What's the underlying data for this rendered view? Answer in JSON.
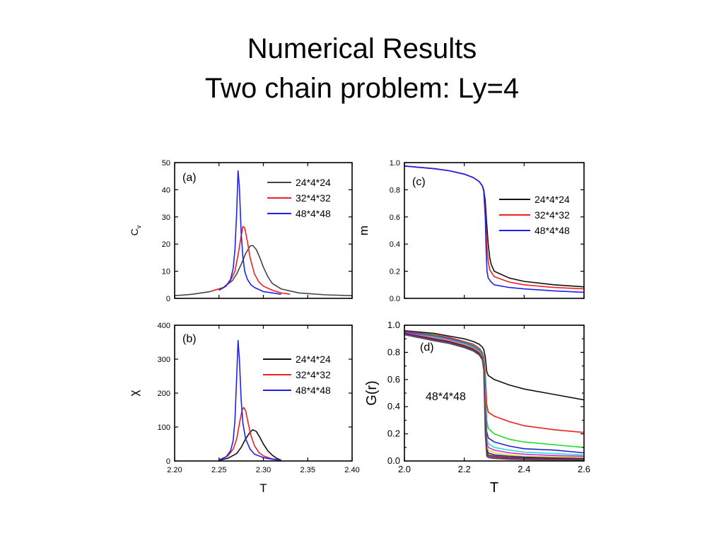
{
  "slide": {
    "title_line1": "Numerical Results",
    "title_line2": "Two chain problem: Ly=4"
  },
  "chart_data": [
    {
      "panel": "(a)",
      "type": "line",
      "xlabel": "",
      "ylabel": "Cv",
      "ylabel_main": "C",
      "ylabel_sub": "v",
      "xlim": [
        2.2,
        2.4
      ],
      "ylim": [
        0,
        50
      ],
      "xticks": [
        2.2,
        2.25,
        2.3,
        2.35,
        2.4
      ],
      "xtick_labels": [],
      "yticks": [
        0,
        10,
        20,
        30,
        40,
        50
      ],
      "ytick_labels": [
        "0",
        "10",
        "20",
        "30",
        "40",
        "50"
      ],
      "legend": "top-right",
      "series": [
        {
          "name": "24*4*24",
          "color": "#444444",
          "x": [
            2.2,
            2.22,
            2.24,
            2.255,
            2.265,
            2.27,
            2.275,
            2.28,
            2.285,
            2.288,
            2.292,
            2.296,
            2.3,
            2.305,
            2.31,
            2.32,
            2.34,
            2.37,
            2.4
          ],
          "y": [
            1,
            1.5,
            2.5,
            4,
            6.5,
            9,
            12.5,
            16.5,
            19.3,
            19.5,
            18,
            15,
            11.5,
            8,
            5.5,
            3.5,
            2,
            1.3,
            1
          ]
        },
        {
          "name": "32*4*32",
          "color": "#ee2020",
          "x": [
            2.24,
            2.255,
            2.262,
            2.268,
            2.272,
            2.275,
            2.277,
            2.279,
            2.282,
            2.285,
            2.29,
            2.295,
            2.3,
            2.31,
            2.32,
            2.33
          ],
          "y": [
            2.5,
            4,
            6,
            10,
            17,
            23,
            26.5,
            26,
            21,
            15,
            9,
            6,
            4.5,
            3,
            2,
            1.5
          ]
        },
        {
          "name": "48*4*48",
          "color": "#2020ee",
          "x": [
            2.25,
            2.258,
            2.263,
            2.266,
            2.268,
            2.27,
            2.2715,
            2.273,
            2.275,
            2.277,
            2.279,
            2.282,
            2.286,
            2.29,
            2.3,
            2.31,
            2.32
          ],
          "y": [
            3,
            4.5,
            7,
            11,
            18,
            32,
            47,
            41,
            24,
            15,
            10,
            7,
            5,
            4,
            2.5,
            2,
            1.5
          ]
        }
      ]
    },
    {
      "panel": "(b)",
      "type": "line",
      "xlabel": "T",
      "ylabel": "χ",
      "xlim": [
        2.2,
        2.4
      ],
      "ylim": [
        0,
        400
      ],
      "xticks": [
        2.2,
        2.25,
        2.3,
        2.35,
        2.4
      ],
      "xtick_labels": [
        "2.20",
        "2.25",
        "2.30",
        "2.35",
        "2.40"
      ],
      "yticks": [
        0,
        100,
        200,
        300,
        400
      ],
      "ytick_labels": [
        "0",
        "100",
        "200",
        "300",
        "400"
      ],
      "legend": "top-right",
      "series": [
        {
          "name": "24*4*24",
          "color": "#111111",
          "x": [
            2.25,
            2.26,
            2.27,
            2.275,
            2.28,
            2.285,
            2.288,
            2.292,
            2.296,
            2.3,
            2.305,
            2.31,
            2.315,
            2.32
          ],
          "y": [
            2,
            8,
            22,
            40,
            65,
            85,
            92,
            87,
            70,
            50,
            30,
            17,
            8,
            3
          ]
        },
        {
          "name": "32*4*32",
          "color": "#ee2020",
          "x": [
            2.25,
            2.26,
            2.266,
            2.27,
            2.273,
            2.276,
            2.278,
            2.28,
            2.283,
            2.286,
            2.29,
            2.295,
            2.3,
            2.31,
            2.32
          ],
          "y": [
            3,
            15,
            35,
            65,
            110,
            150,
            158,
            148,
            110,
            75,
            45,
            25,
            15,
            6,
            3
          ]
        },
        {
          "name": "48*4*48",
          "color": "#2020ee",
          "x": [
            2.25,
            2.258,
            2.263,
            2.266,
            2.268,
            2.27,
            2.2715,
            2.273,
            2.275,
            2.277,
            2.28,
            2.285,
            2.29,
            2.3,
            2.31,
            2.32
          ],
          "y": [
            3,
            12,
            30,
            60,
            120,
            250,
            355,
            300,
            180,
            110,
            65,
            35,
            20,
            10,
            5,
            2
          ]
        }
      ]
    },
    {
      "panel": "(c)",
      "type": "line",
      "xlabel": "",
      "ylabel": "m",
      "xlim": [
        2.0,
        2.6
      ],
      "ylim": [
        0,
        1.0
      ],
      "xticks": [
        2.0,
        2.2,
        2.4,
        2.6
      ],
      "xtick_labels": [],
      "yticks": [
        0,
        0.2,
        0.4,
        0.6,
        0.8,
        1.0
      ],
      "ytick_labels": [
        "0.0",
        "0.2",
        "0.4",
        "0.6",
        "0.8",
        "1.0"
      ],
      "legend": "right",
      "series": [
        {
          "name": "24*4*24",
          "color": "#111111",
          "x": [
            2.0,
            2.05,
            2.1,
            2.15,
            2.2,
            2.23,
            2.25,
            2.26,
            2.265,
            2.27,
            2.275,
            2.28,
            2.285,
            2.29,
            2.3,
            2.35,
            2.4,
            2.5,
            2.6
          ],
          "y": [
            0.975,
            0.965,
            0.955,
            0.94,
            0.915,
            0.89,
            0.86,
            0.83,
            0.8,
            0.72,
            0.55,
            0.4,
            0.3,
            0.25,
            0.2,
            0.15,
            0.125,
            0.1,
            0.085
          ]
        },
        {
          "name": "32*4*32",
          "color": "#ee2020",
          "x": [
            2.0,
            2.05,
            2.1,
            2.15,
            2.2,
            2.23,
            2.25,
            2.26,
            2.265,
            2.27,
            2.275,
            2.28,
            2.285,
            2.3,
            2.35,
            2.4,
            2.5,
            2.6
          ],
          "y": [
            0.975,
            0.965,
            0.955,
            0.94,
            0.915,
            0.89,
            0.86,
            0.83,
            0.79,
            0.65,
            0.4,
            0.27,
            0.21,
            0.16,
            0.12,
            0.1,
            0.08,
            0.07
          ]
        },
        {
          "name": "48*4*48",
          "color": "#2020ee",
          "x": [
            2.0,
            2.05,
            2.1,
            2.15,
            2.2,
            2.23,
            2.25,
            2.26,
            2.265,
            2.27,
            2.273,
            2.276,
            2.28,
            2.29,
            2.3,
            2.35,
            2.4,
            2.5,
            2.6
          ],
          "y": [
            0.975,
            0.965,
            0.955,
            0.94,
            0.915,
            0.89,
            0.86,
            0.83,
            0.79,
            0.6,
            0.35,
            0.2,
            0.15,
            0.12,
            0.1,
            0.08,
            0.07,
            0.055,
            0.045
          ]
        }
      ]
    },
    {
      "panel": "(d)",
      "type": "line",
      "xlabel": "T",
      "ylabel": "G(r)",
      "annotation": "48*4*48",
      "xlim": [
        2.0,
        2.6
      ],
      "ylim": [
        0,
        1.0
      ],
      "xticks": [
        2.0,
        2.2,
        2.4,
        2.6
      ],
      "xtick_labels": [
        "2.0",
        "2.2",
        "2.4",
        "2.6"
      ],
      "yticks": [
        0,
        0.1,
        0.2,
        0.3,
        0.4,
        0.5,
        0.6,
        0.7,
        0.8,
        0.9,
        1.0
      ],
      "ytick_labels": [
        "0.0",
        "",
        "0.2",
        "",
        "0.4",
        "",
        "0.6",
        "",
        "0.8",
        "",
        "1.0"
      ],
      "legend": "none",
      "series": [
        {
          "color": "#111111",
          "x": [
            2.0,
            2.1,
            2.15,
            2.2,
            2.23,
            2.25,
            2.26,
            2.265,
            2.27,
            2.275,
            2.28,
            2.3,
            2.35,
            2.4,
            2.5,
            2.6
          ],
          "y": [
            0.96,
            0.94,
            0.92,
            0.9,
            0.88,
            0.86,
            0.84,
            0.82,
            0.77,
            0.66,
            0.63,
            0.6,
            0.56,
            0.53,
            0.49,
            0.45
          ]
        },
        {
          "color": "#ee2020",
          "x": [
            2.0,
            2.1,
            2.15,
            2.2,
            2.23,
            2.25,
            2.26,
            2.265,
            2.27,
            2.275,
            2.28,
            2.3,
            2.35,
            2.4,
            2.5,
            2.6
          ],
          "y": [
            0.955,
            0.93,
            0.91,
            0.88,
            0.86,
            0.83,
            0.8,
            0.77,
            0.65,
            0.42,
            0.36,
            0.33,
            0.29,
            0.26,
            0.23,
            0.21
          ]
        },
        {
          "color": "#22dd22",
          "x": [
            2.0,
            2.1,
            2.15,
            2.2,
            2.23,
            2.25,
            2.26,
            2.265,
            2.27,
            2.275,
            2.28,
            2.3,
            2.35,
            2.4,
            2.5,
            2.6
          ],
          "y": [
            0.95,
            0.925,
            0.9,
            0.875,
            0.85,
            0.82,
            0.79,
            0.75,
            0.6,
            0.3,
            0.24,
            0.2,
            0.16,
            0.14,
            0.12,
            0.1
          ]
        },
        {
          "color": "#2222cc",
          "x": [
            2.0,
            2.1,
            2.15,
            2.2,
            2.23,
            2.25,
            2.26,
            2.265,
            2.27,
            2.275,
            2.28,
            2.3,
            2.35,
            2.4,
            2.5,
            2.6
          ],
          "y": [
            0.95,
            0.92,
            0.9,
            0.87,
            0.845,
            0.815,
            0.78,
            0.74,
            0.55,
            0.22,
            0.17,
            0.14,
            0.11,
            0.09,
            0.08,
            0.06
          ]
        },
        {
          "color": "#22dddd",
          "x": [
            2.0,
            2.1,
            2.15,
            2.2,
            2.23,
            2.25,
            2.26,
            2.265,
            2.27,
            2.275,
            2.28,
            2.3,
            2.35,
            2.4,
            2.5,
            2.6
          ],
          "y": [
            0.945,
            0.915,
            0.895,
            0.865,
            0.84,
            0.81,
            0.775,
            0.73,
            0.5,
            0.17,
            0.13,
            0.1,
            0.08,
            0.065,
            0.055,
            0.045
          ]
        },
        {
          "color": "#dd22dd",
          "x": [
            2.0,
            2.1,
            2.15,
            2.2,
            2.23,
            2.25,
            2.26,
            2.265,
            2.27,
            2.275,
            2.28,
            2.3,
            2.35,
            2.4,
            2.5,
            2.6
          ],
          "y": [
            0.945,
            0.91,
            0.89,
            0.86,
            0.835,
            0.805,
            0.77,
            0.72,
            0.45,
            0.14,
            0.1,
            0.08,
            0.06,
            0.05,
            0.04,
            0.035
          ]
        },
        {
          "color": "#dddd22",
          "x": [
            2.0,
            2.1,
            2.15,
            2.2,
            2.23,
            2.25,
            2.26,
            2.265,
            2.27,
            2.275,
            2.28,
            2.3,
            2.35,
            2.4,
            2.5,
            2.6
          ],
          "y": [
            0.94,
            0.905,
            0.885,
            0.855,
            0.83,
            0.8,
            0.765,
            0.71,
            0.4,
            0.11,
            0.08,
            0.06,
            0.045,
            0.035,
            0.03,
            0.025
          ]
        },
        {
          "color": "#222288",
          "x": [
            2.0,
            2.1,
            2.15,
            2.2,
            2.23,
            2.25,
            2.26,
            2.265,
            2.27,
            2.275,
            2.28,
            2.3,
            2.35,
            2.4,
            2.5,
            2.6
          ],
          "y": [
            0.94,
            0.9,
            0.88,
            0.85,
            0.825,
            0.795,
            0.76,
            0.7,
            0.35,
            0.09,
            0.06,
            0.045,
            0.035,
            0.028,
            0.022,
            0.018
          ]
        },
        {
          "color": "#882222",
          "x": [
            2.0,
            2.1,
            2.15,
            2.2,
            2.23,
            2.25,
            2.26,
            2.265,
            2.27,
            2.275,
            2.28,
            2.3,
            2.35,
            2.4,
            2.5,
            2.6
          ],
          "y": [
            0.935,
            0.895,
            0.875,
            0.845,
            0.82,
            0.79,
            0.755,
            0.69,
            0.3,
            0.07,
            0.045,
            0.035,
            0.025,
            0.02,
            0.016,
            0.013
          ]
        },
        {
          "color": "#882288",
          "x": [
            2.0,
            2.1,
            2.15,
            2.2,
            2.23,
            2.25,
            2.26,
            2.265,
            2.27,
            2.275,
            2.28,
            2.3,
            2.35,
            2.4,
            2.5,
            2.6
          ],
          "y": [
            0.935,
            0.89,
            0.87,
            0.84,
            0.815,
            0.785,
            0.75,
            0.68,
            0.25,
            0.05,
            0.035,
            0.025,
            0.018,
            0.014,
            0.011,
            0.009
          ]
        },
        {
          "color": "#555555",
          "x": [
            2.0,
            2.1,
            2.15,
            2.2,
            2.23,
            2.25,
            2.26,
            2.265,
            2.27,
            2.275,
            2.28,
            2.3,
            2.35,
            2.4,
            2.5,
            2.6
          ],
          "y": [
            0.93,
            0.885,
            0.865,
            0.835,
            0.81,
            0.78,
            0.745,
            0.67,
            0.2,
            0.035,
            0.025,
            0.018,
            0.012,
            0.01,
            0.008,
            0.006
          ]
        }
      ]
    }
  ]
}
